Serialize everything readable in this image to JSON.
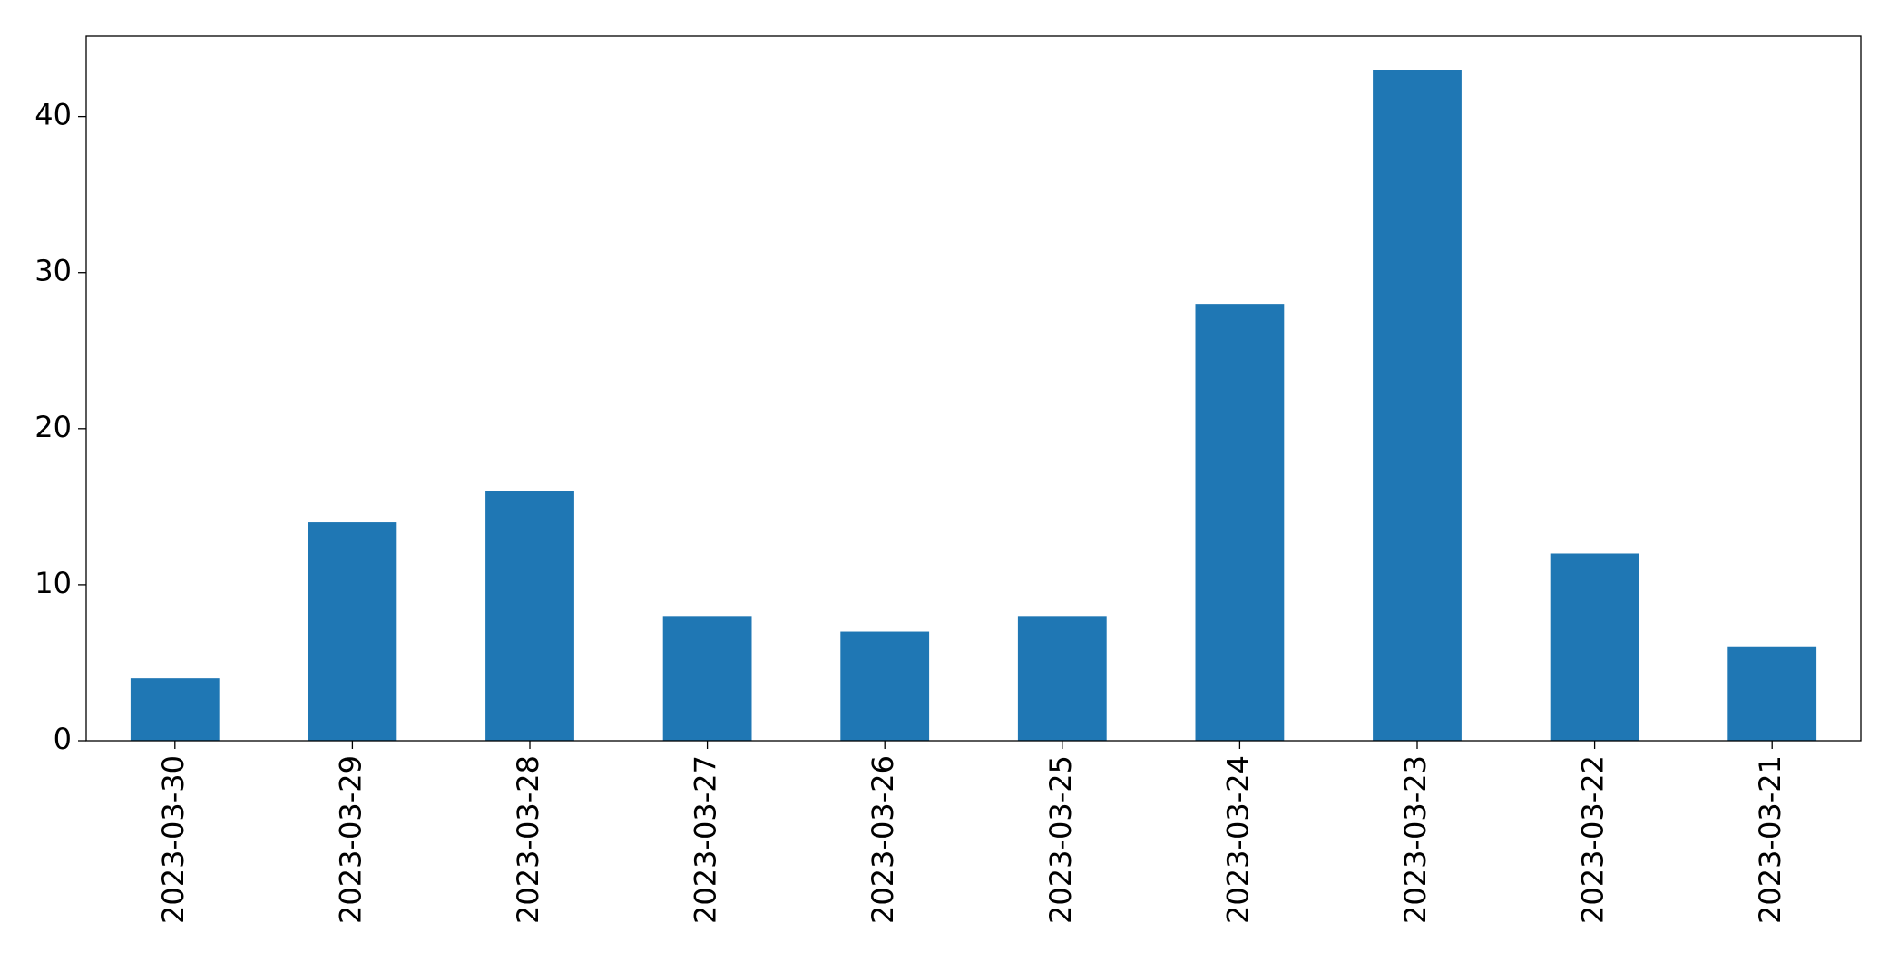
{
  "chart_data": {
    "type": "bar",
    "categories": [
      "2023-03-30",
      "2023-03-29",
      "2023-03-28",
      "2023-03-27",
      "2023-03-26",
      "2023-03-25",
      "2023-03-24",
      "2023-03-23",
      "2023-03-22",
      "2023-03-21"
    ],
    "values": [
      4,
      14,
      16,
      8,
      7,
      8,
      28,
      43,
      12,
      6
    ],
    "color": "#1f77b4",
    "ylim": [
      0,
      45.15
    ],
    "yticks": [
      0,
      10,
      20,
      30,
      40
    ],
    "grid": false
  }
}
